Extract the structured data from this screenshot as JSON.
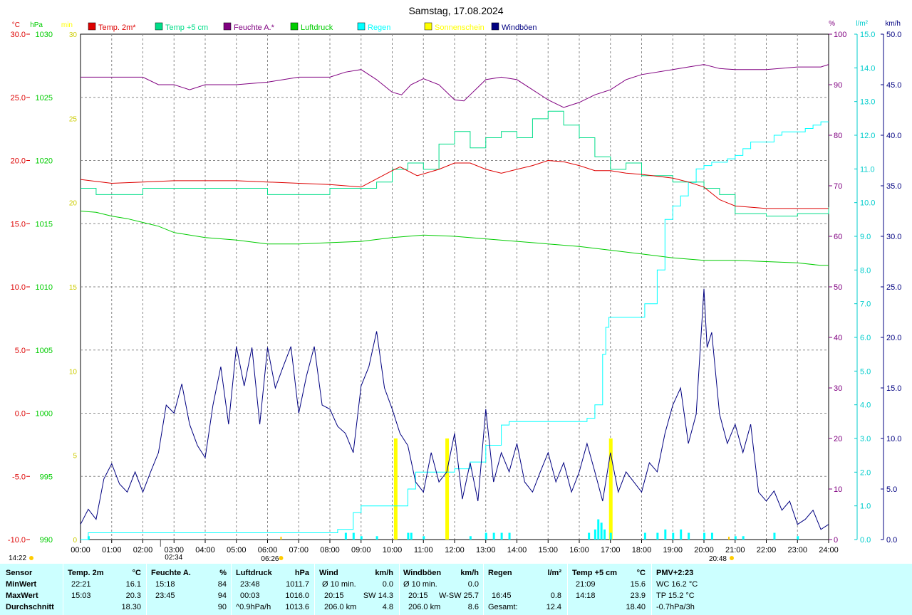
{
  "title": "Samstag, 17.08.2024",
  "colors": {
    "temp2m": "#dd0000",
    "temp5cm": "#00dd88",
    "humidity": "#800080",
    "pressure": "#00cc00",
    "rain": "#00ffff",
    "sunshine": "#ffff00",
    "gusts": "#000080",
    "stats_bg": "#ccffff"
  },
  "legend": [
    {
      "label": "Temp. 2m*",
      "color": "#dd0000"
    },
    {
      "label": "Temp +5 cm",
      "color": "#00dd88"
    },
    {
      "label": "Feuchte A.*",
      "color": "#800080"
    },
    {
      "label": "Luftdruck",
      "color": "#00cc00"
    },
    {
      "label": "Regen",
      "color": "#00ffff"
    },
    {
      "label": "Sonnenschein",
      "color": "#ffff00"
    },
    {
      "label": "Windböen",
      "color": "#000080"
    }
  ],
  "axes": {
    "temp": {
      "unit": "°C",
      "ticks": [
        "30.0",
        "25.0",
        "20.0",
        "15.0",
        "10.0",
        "5.0",
        "0.0",
        "-5.0",
        "-10.0"
      ],
      "range": [
        -10,
        30
      ]
    },
    "pressure": {
      "unit": "hPa",
      "ticks": [
        "1030",
        "1025",
        "1020",
        "1015",
        "1010",
        "1005",
        "1000",
        "995",
        "990"
      ],
      "range": [
        990,
        1030
      ]
    },
    "sunshine": {
      "unit": "min",
      "ticks": [
        "30",
        "25",
        "20",
        "15",
        "10",
        "5",
        "0"
      ],
      "range": [
        0,
        30
      ]
    },
    "humidity": {
      "unit": "%",
      "ticks": [
        "100",
        "90",
        "80",
        "70",
        "60",
        "50",
        "40",
        "30",
        "20",
        "10",
        "0"
      ],
      "range": [
        0,
        100
      ]
    },
    "rain": {
      "unit": "l/m²",
      "ticks": [
        "15.0",
        "14.0",
        "13.0",
        "12.0",
        "11.0",
        "10.0",
        "9.0",
        "8.0",
        "7.0",
        "6.0",
        "5.0",
        "4.0",
        "3.0",
        "2.0",
        "1.0",
        "0.0"
      ],
      "range": [
        0,
        15
      ]
    },
    "wind": {
      "unit": "km/h",
      "ticks": [
        "50.0",
        "45.0",
        "40.0",
        "35.0",
        "30.0",
        "25.0",
        "20.0",
        "15.0",
        "10.0",
        "5.0",
        "0.0"
      ],
      "range": [
        0,
        50
      ]
    },
    "time": {
      "ticks": [
        "00:00",
        "01:00",
        "02:00",
        "03:00",
        "04:00",
        "05:00",
        "06:00",
        "07:00",
        "08:00",
        "09:00",
        "10:00",
        "11:00",
        "12:00",
        "13:00",
        "14:00",
        "15:00",
        "16:00",
        "17:00",
        "18:00",
        "19:00",
        "20:00",
        "21:00",
        "22:00",
        "23:00",
        "24:00"
      ]
    }
  },
  "time_markers": [
    {
      "label": "14:22",
      "kind": "moonset"
    },
    {
      "label": "02:34",
      "kind": "moonrise"
    },
    {
      "label": "06:26",
      "kind": "sunrise"
    },
    {
      "label": "20:48",
      "kind": "sunset"
    }
  ],
  "chart_data": {
    "type": "line",
    "title": "Samstag, 17.08.2024",
    "x_unit": "hour of day",
    "series": [
      {
        "name": "Temp. 2m*",
        "axis": "temp",
        "x": [
          0,
          1,
          2,
          3,
          4,
          5,
          6,
          7,
          8,
          9,
          10,
          10.25,
          10.8,
          11.5,
          12,
          12.5,
          13,
          13.5,
          14,
          14.5,
          15,
          15.5,
          16,
          16.5,
          17,
          17.5,
          18,
          19,
          19.5,
          20,
          20.5,
          21,
          22,
          23,
          24
        ],
        "y": [
          18.5,
          18.2,
          18.3,
          18.4,
          18.4,
          18.4,
          18.3,
          18.2,
          18.1,
          17.9,
          19.2,
          19.5,
          18.8,
          19.3,
          19.8,
          19.8,
          19.3,
          19.0,
          19.3,
          19.6,
          20.0,
          19.9,
          19.6,
          19.2,
          19.2,
          19.0,
          18.9,
          18.6,
          18.3,
          17.9,
          16.9,
          16.4,
          16.2,
          16.2,
          16.2
        ]
      },
      {
        "name": "Temp +5 cm",
        "axis": "temp",
        "x": [
          0,
          0.5,
          1,
          1.5,
          2,
          3,
          4,
          5,
          6,
          7,
          8,
          9,
          9.5,
          10,
          10.5,
          11,
          11.5,
          12,
          12.5,
          13,
          13.5,
          14,
          14.5,
          15,
          15.5,
          16,
          16.5,
          17,
          17.5,
          18,
          19,
          19.5,
          20,
          20.5,
          21,
          22,
          23,
          24
        ],
        "y": [
          17.8,
          17.3,
          17.3,
          17.3,
          17.8,
          17.8,
          17.8,
          17.8,
          17.3,
          17.3,
          17.8,
          17.8,
          18.3,
          19.3,
          19.8,
          19.3,
          21.3,
          22.3,
          21.0,
          21.8,
          22.3,
          21.8,
          23.3,
          23.9,
          22.8,
          21.8,
          20.3,
          19.3,
          19.8,
          18.8,
          18.3,
          18.3,
          17.8,
          17.3,
          15.8,
          15.6,
          15.8,
          16.3
        ]
      },
      {
        "name": "Feuchte A.*",
        "axis": "humidity",
        "x": [
          0,
          1,
          2,
          2.5,
          3,
          3.5,
          4,
          5,
          6,
          7,
          8,
          8.5,
          9,
          9.5,
          10,
          10.3,
          10.6,
          11,
          11.5,
          12,
          12.3,
          12.5,
          13,
          13.5,
          14,
          14.5,
          15,
          15.5,
          16,
          16.5,
          17,
          17.5,
          18,
          19,
          19.5,
          20,
          20.5,
          21,
          22,
          23,
          23.75,
          24
        ],
        "y": [
          91.5,
          91.5,
          91.5,
          90,
          90,
          89,
          90,
          90,
          90.5,
          91.5,
          91.5,
          92.5,
          93,
          91,
          88.5,
          88,
          90,
          91.2,
          90,
          87,
          86.8,
          88,
          91,
          91.5,
          91,
          89,
          87,
          85.5,
          86.5,
          88,
          89,
          91,
          92,
          93,
          93.5,
          94,
          93.2,
          93,
          93,
          93.5,
          93.5,
          94
        ]
      },
      {
        "name": "Luftdruck",
        "axis": "pressure",
        "x": [
          0,
          0.5,
          1,
          1.5,
          2,
          2.5,
          3,
          4,
          5,
          6,
          7,
          8,
          9,
          10,
          11,
          12,
          13,
          14,
          15,
          16,
          17,
          18,
          19,
          20,
          21,
          22,
          23,
          23.75,
          24
        ],
        "y": [
          1016.0,
          1015.9,
          1015.6,
          1015.4,
          1015.1,
          1014.8,
          1014.3,
          1013.9,
          1013.7,
          1013.4,
          1013.4,
          1013.5,
          1013.6,
          1013.9,
          1014.1,
          1014.0,
          1013.8,
          1013.6,
          1013.4,
          1013.2,
          1012.9,
          1012.6,
          1012.3,
          1012.1,
          1012.1,
          1012.0,
          1011.9,
          1011.7,
          1011.7
        ]
      },
      {
        "name": "Windböen",
        "axis": "wind",
        "x": [
          0,
          0.25,
          0.5,
          0.75,
          1,
          1.25,
          1.5,
          1.75,
          2,
          2.25,
          2.5,
          2.75,
          3,
          3.25,
          3.5,
          3.75,
          4,
          4.25,
          4.5,
          4.75,
          5,
          5.25,
          5.5,
          5.75,
          6,
          6.25,
          6.5,
          6.75,
          7,
          7.25,
          7.5,
          7.75,
          8,
          8.25,
          8.5,
          8.75,
          9,
          9.25,
          9.5,
          9.75,
          10,
          10.25,
          10.5,
          10.75,
          11,
          11.25,
          11.5,
          11.75,
          12,
          12.25,
          12.5,
          12.75,
          13,
          13.25,
          13.5,
          13.75,
          14,
          14.25,
          14.5,
          14.75,
          15,
          15.25,
          15.5,
          15.75,
          16,
          16.25,
          16.5,
          16.75,
          17,
          17.25,
          17.5,
          17.75,
          18,
          18.25,
          18.5,
          18.75,
          19,
          19.25,
          19.5,
          19.75,
          20,
          20.1,
          20.25,
          20.5,
          20.75,
          21,
          21.25,
          21.5,
          21.75,
          22,
          22.25,
          22.5,
          22.75,
          23,
          23.25,
          23.5,
          23.75,
          24
        ],
        "y": [
          1.5,
          3.0,
          2.0,
          6.0,
          7.5,
          5.5,
          4.7,
          6.7,
          4.7,
          6.7,
          8.6,
          13.3,
          12.5,
          15.4,
          11.4,
          9.3,
          8.1,
          13.3,
          17.1,
          11.4,
          19.1,
          15.2,
          19.0,
          11.4,
          19.0,
          15.0,
          17.1,
          19.1,
          12.5,
          16.2,
          19.1,
          13.3,
          12.9,
          11.2,
          10.5,
          8.6,
          15.2,
          17.1,
          20.6,
          15.0,
          12.9,
          10.5,
          9.3,
          5.7,
          4.7,
          8.6,
          5.7,
          6.7,
          10.5,
          4.0,
          7.6,
          3.8,
          12.9,
          5.7,
          8.6,
          6.7,
          9.5,
          5.7,
          4.7,
          6.7,
          8.6,
          5.7,
          7.6,
          4.7,
          6.7,
          9.5,
          6.7,
          3.8,
          8.6,
          4.7,
          6.7,
          5.7,
          4.7,
          7.6,
          6.7,
          10.5,
          13.3,
          15.0,
          9.5,
          12.4,
          24.8,
          19.0,
          20.5,
          12.4,
          9.5,
          11.4,
          8.6,
          11.4,
          4.7,
          3.8,
          4.8,
          2.9,
          3.8,
          1.5,
          2.0,
          2.9,
          1.0,
          1.5
        ]
      },
      {
        "name": "Regen",
        "axis": "rain",
        "cumulative": true,
        "x": [
          0,
          0.25,
          8.0,
          8.25,
          8.75,
          9.0,
          10.0,
          10.5,
          10.75,
          11.0,
          12.0,
          12.5,
          13.0,
          13.5,
          13.75,
          14.0,
          14.5,
          15.0,
          15.5,
          16.0,
          16.25,
          16.5,
          16.75,
          16.85,
          16.95,
          17.0,
          18.0,
          18.1,
          18.5,
          18.75,
          19.0,
          19.25,
          19.5,
          19.75,
          20.0,
          20.25,
          20.5,
          20.75,
          21.0,
          21.25,
          21.5,
          22.0,
          22.25,
          22.5,
          23.0,
          23.25,
          23.5,
          23.75,
          24
        ],
        "y": [
          0,
          0.2,
          0.2,
          0.3,
          0.8,
          1.0,
          1.0,
          1.5,
          2.0,
          2.0,
          2.1,
          2.3,
          2.8,
          3.4,
          3.5,
          3.5,
          3.5,
          3.5,
          3.5,
          3.5,
          3.6,
          4.0,
          5.5,
          6.3,
          6.6,
          6.6,
          6.6,
          7.0,
          8.0,
          9.5,
          9.9,
          10.2,
          10.6,
          11.0,
          11.1,
          11.2,
          11.2,
          11.3,
          11.4,
          11.6,
          11.8,
          11.8,
          12.0,
          12.1,
          12.1,
          12.2,
          12.3,
          12.4,
          12.4
        ]
      },
      {
        "name": "Regen (Intervall)",
        "axis": "rain",
        "x": [
          0.25,
          8.5,
          8.75,
          9.0,
          9.5,
          10.5,
          10.6,
          11.0,
          12.5,
          13.0,
          13.25,
          13.5,
          13.75,
          16.3,
          16.5,
          16.6,
          16.7,
          16.8,
          17.0,
          18.1,
          18.5,
          18.75,
          19.0,
          19.25,
          19.5,
          20.0,
          20.25,
          21.0,
          21.25,
          22.25,
          23.0
        ],
        "y": [
          0.1,
          0.2,
          0.2,
          0.1,
          0.1,
          0.2,
          0.2,
          0.1,
          0.1,
          0.2,
          0.2,
          0.2,
          0.2,
          0.2,
          0.3,
          0.6,
          0.5,
          0.3,
          0.2,
          0.2,
          0.2,
          0.3,
          0.2,
          0.3,
          0.2,
          0.2,
          0.2,
          0.1,
          0.1,
          0.2,
          0.1
        ]
      },
      {
        "name": "Sonnenschein",
        "axis": "sunshine",
        "x": [
          10.1,
          11.75,
          17.0
        ],
        "y": [
          6,
          6,
          6
        ]
      }
    ]
  },
  "stats": {
    "headers": {
      "sensor": "Sensor",
      "temp": {
        "label": "Temp. 2m",
        "unit": "°C"
      },
      "hum": {
        "label": "Feuchte A.",
        "unit": "%"
      },
      "press": {
        "label": "Luftdruck",
        "unit": "hPa"
      },
      "wind": {
        "label": "Wind",
        "unit": "km/h"
      },
      "gust": {
        "label": "Windböen",
        "unit": "km/h"
      },
      "rain": {
        "label": "Regen",
        "unit": "l/m²"
      },
      "temp5": {
        "label": "Temp +5 cm",
        "unit": "°C"
      },
      "pmv": {
        "label": "PMV+2:23"
      }
    },
    "rows": {
      "min": {
        "label": "MinWert",
        "temp": {
          "time": "22:21",
          "value": "16.1"
        },
        "hum": {
          "time": "15:18",
          "value": "84"
        },
        "press": {
          "time": "23:48",
          "value": "1011.7"
        },
        "wind": {
          "time": "Ø 10 min.",
          "value": "0.0"
        },
        "gust": {
          "time": "Ø 10 min.",
          "value": "0.0"
        },
        "rain": {
          "time": "",
          "value": ""
        },
        "temp5": {
          "time": "21:09",
          "value": "15.6"
        },
        "pmv": "WC 16.2 °C"
      },
      "max": {
        "label": "MaxWert",
        "temp": {
          "time": "15:03",
          "value": "20.3"
        },
        "hum": {
          "time": "23:45",
          "value": "94"
        },
        "press": {
          "time": "00:03",
          "value": "1016.0"
        },
        "wind": {
          "time": "20:15",
          "dir": "SW 14.3",
          "value": ""
        },
        "gust": {
          "time": "20:15",
          "dir": "W-SW 25.7",
          "value": ""
        },
        "rain": {
          "time": "16:45",
          "value": "0.8"
        },
        "temp5": {
          "time": "14:18",
          "value": "23.9"
        },
        "pmv": "TP 15.2 °C"
      },
      "avg": {
        "label": "Durchschnitt",
        "temp": {
          "time": "",
          "value": "18.30"
        },
        "hum": {
          "time": "",
          "value": "90"
        },
        "press": {
          "time": "^0.9hPa/h",
          "value": "1013.6"
        },
        "wind": {
          "time": "206.0 km",
          "value": "4.8"
        },
        "gust": {
          "time": "206.0 km",
          "value": "8.6"
        },
        "rain": {
          "time": "Gesamt:",
          "value": "12.4"
        },
        "temp5": {
          "time": "",
          "value": "18.40"
        },
        "pmv": "-0.7hPa/3h"
      }
    }
  }
}
